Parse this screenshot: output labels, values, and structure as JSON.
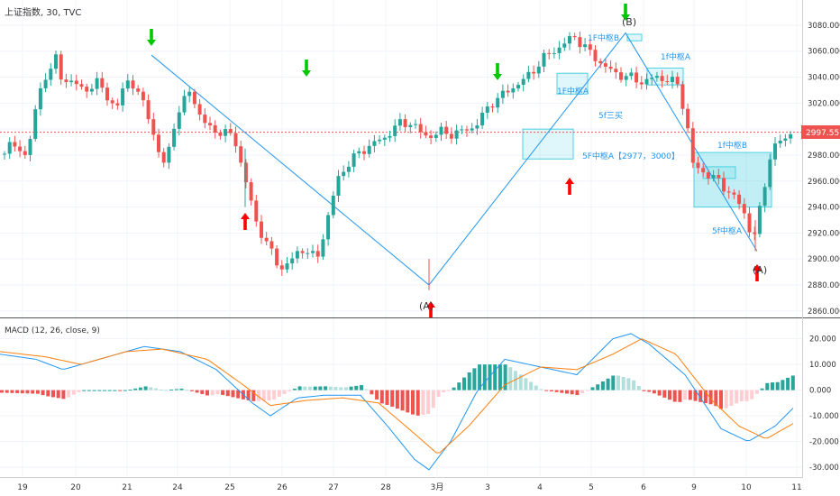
{
  "header": {
    "symbol": "上证指数, 30, TVC"
  },
  "macd_header": {
    "label": "MACD (12, 26, close, 9)"
  },
  "price_tag": {
    "value": "2997.551"
  },
  "colors": {
    "up": "#26a69a",
    "down": "#ef5350",
    "macd_line": "#2196f3",
    "signal_line": "#ff7f0e",
    "zone": "#4dd0e1",
    "annotation": "#2196f3",
    "up_arrow": "#ff0000",
    "down_arrow": "#00c800"
  },
  "chart_data": [
    {
      "type": "candlestick",
      "title": "",
      "x_ticks": [
        "19",
        "20",
        "21",
        "24",
        "25",
        "26",
        "27",
        "28",
        "3月",
        "3",
        "4",
        "5",
        "6",
        "9",
        "10",
        "11"
      ],
      "y_ticks": [
        "3080.000",
        "3060.000",
        "3040.000",
        "3020.000",
        "3000.000",
        "2980.000",
        "2960.000",
        "2940.000",
        "2920.000",
        "2900.000",
        "2880.000",
        "2860.000"
      ],
      "ylim": [
        2855,
        3098
      ],
      "last_price": 2997.551,
      "annotations": [
        "(B)",
        "1F中枢B",
        "1f中枢A",
        "1F中枢A",
        "5f三买",
        "5F中枢A【2977，3000】",
        "1f中枢B",
        "5f中枢A",
        "(A)",
        "(A)"
      ],
      "zones": [
        {
          "label": "1F中枢B",
          "low": 3068,
          "high": 3073
        },
        {
          "label": "1f中枢A",
          "low": 3034,
          "high": 3047
        },
        {
          "label": "1F中枢A",
          "low": 3027,
          "high": 3043
        },
        {
          "label": "5F中枢A【2977，3000】",
          "low": 2977,
          "high": 3000
        },
        {
          "label": "1f中枢B",
          "low": 2940,
          "high": 2982
        },
        {
          "label": "5f中枢A",
          "low": 2962,
          "high": 2971
        }
      ],
      "zigzag": [
        3057,
        2880,
        3074,
        2906
      ]
    },
    {
      "type": "macd",
      "title": "",
      "y_ticks": [
        "20.000",
        "10.000",
        "0.000",
        "-10.000",
        "-20.000",
        "-30.000"
      ],
      "ylim": [
        -33.5,
        25.5
      ]
    }
  ]
}
